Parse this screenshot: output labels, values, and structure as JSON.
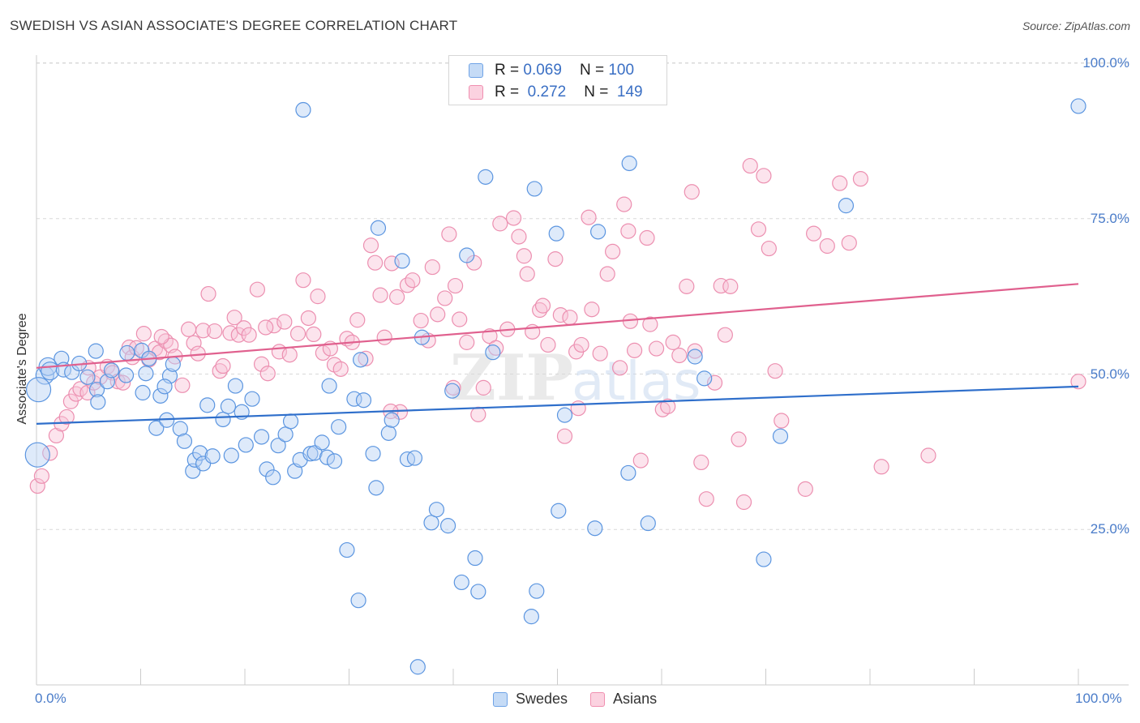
{
  "header": {
    "title": "SWEDISH VS ASIAN ASSOCIATE'S DEGREE CORRELATION CHART",
    "source": "Source: ZipAtlas.com"
  },
  "watermark": "ZIPatlas",
  "legend_top": {
    "rows": [
      {
        "r_label": "R =",
        "r_value": "0.069",
        "n_label": "N =",
        "n_value": "100",
        "color": "#6fa3e6"
      },
      {
        "r_label": "R =",
        "r_value": "0.272",
        "n_label": "N =",
        "n_value": "149",
        "color": "#f08fb0"
      }
    ]
  },
  "legend_bottom": {
    "items": [
      {
        "label": "Swedes",
        "color": "#6fa3e6"
      },
      {
        "label": "Asians",
        "color": "#f08fb0"
      }
    ]
  },
  "chart_data": {
    "type": "scatter",
    "title": "SWEDISH VS ASIAN ASSOCIATE'S DEGREE CORRELATION CHART",
    "xlabel": "",
    "ylabel": "Associate's Degree",
    "xlim": [
      0,
      100
    ],
    "ylim": [
      0,
      100
    ],
    "x_tick_labels": [
      "0.0%",
      "100.0%"
    ],
    "y_ticks": [
      25,
      50,
      75,
      100
    ],
    "y_tick_labels": [
      "25.0%",
      "50.0%",
      "75.0%",
      "100.0%"
    ],
    "grid": "horizontal dashed",
    "legend_position": "top-center",
    "series": [
      {
        "name": "Swedes",
        "color": "#6fa3e6",
        "line_color": "#2f6fcb",
        "trend": {
          "x": [
            0,
            100
          ],
          "y": [
            42.0,
            48.0
          ]
        },
        "points": [
          [
            0.8,
            49.8
          ],
          [
            1.1,
            51.2
          ],
          [
            1.3,
            50.5
          ],
          [
            2.4,
            52.5
          ],
          [
            2.6,
            50.7
          ],
          [
            3.4,
            50.3
          ],
          [
            4.1,
            51.7
          ],
          [
            4.9,
            49.5
          ],
          [
            5.7,
            53.7
          ],
          [
            5.8,
            47.5
          ],
          [
            6.8,
            48.8
          ],
          [
            7.2,
            50.6
          ],
          [
            8.6,
            49.8
          ],
          [
            8.7,
            53.4
          ],
          [
            10.1,
            53.8
          ],
          [
            10.5,
            50.1
          ],
          [
            10.8,
            52.5
          ],
          [
            11.5,
            41.3
          ],
          [
            11.9,
            46.5
          ],
          [
            12.5,
            42.6
          ],
          [
            12.8,
            49.7
          ],
          [
            13.1,
            51.6
          ],
          [
            13.8,
            41.2
          ],
          [
            14.2,
            39.2
          ],
          [
            15.0,
            34.4
          ],
          [
            15.2,
            36.2
          ],
          [
            15.7,
            37.3
          ],
          [
            16.0,
            35.6
          ],
          [
            16.9,
            36.8
          ],
          [
            17.9,
            42.7
          ],
          [
            18.4,
            44.8
          ],
          [
            18.7,
            36.9
          ],
          [
            19.1,
            48.1
          ],
          [
            19.7,
            43.9
          ],
          [
            20.1,
            38.6
          ],
          [
            20.7,
            46.0
          ],
          [
            21.6,
            39.9
          ],
          [
            22.1,
            34.7
          ],
          [
            22.7,
            33.4
          ],
          [
            23.2,
            38.5
          ],
          [
            23.9,
            40.3
          ],
          [
            24.4,
            42.4
          ],
          [
            24.8,
            34.4
          ],
          [
            25.3,
            36.2
          ],
          [
            25.6,
            92.5
          ],
          [
            26.3,
            37.2
          ],
          [
            26.7,
            37.3
          ],
          [
            27.4,
            39.0
          ],
          [
            27.9,
            36.6
          ],
          [
            28.1,
            48.1
          ],
          [
            28.6,
            36.0
          ],
          [
            29.0,
            41.5
          ],
          [
            29.8,
            21.7
          ],
          [
            30.5,
            46.0
          ],
          [
            30.9,
            13.6
          ],
          [
            31.1,
            52.3
          ],
          [
            31.4,
            45.8
          ],
          [
            32.3,
            37.2
          ],
          [
            32.6,
            31.7
          ],
          [
            32.8,
            73.5
          ],
          [
            33.8,
            40.5
          ],
          [
            34.1,
            42.6
          ],
          [
            35.1,
            68.2
          ],
          [
            35.6,
            36.3
          ],
          [
            36.3,
            36.5
          ],
          [
            36.6,
            2.9
          ],
          [
            37.0,
            55.9
          ],
          [
            37.9,
            26.1
          ],
          [
            38.4,
            28.2
          ],
          [
            39.5,
            25.6
          ],
          [
            39.9,
            47.3
          ],
          [
            40.8,
            16.5
          ],
          [
            41.3,
            69.1
          ],
          [
            42.1,
            20.4
          ],
          [
            42.4,
            15.0
          ],
          [
            43.1,
            81.7
          ],
          [
            43.8,
            53.5
          ],
          [
            47.5,
            11.0
          ],
          [
            47.8,
            79.8
          ],
          [
            48.0,
            15.1
          ],
          [
            49.9,
            72.6
          ],
          [
            50.1,
            28.0
          ],
          [
            50.7,
            43.4
          ],
          [
            53.6,
            25.2
          ],
          [
            53.9,
            72.9
          ],
          [
            56.8,
            34.1
          ],
          [
            56.9,
            83.9
          ],
          [
            58.7,
            26.0
          ],
          [
            63.2,
            52.8
          ],
          [
            64.1,
            49.3
          ],
          [
            69.8,
            20.2
          ],
          [
            71.4,
            40.0
          ],
          [
            77.7,
            77.1
          ],
          [
            100.0,
            93.1
          ],
          [
            0.2,
            47.5
          ],
          [
            0.1,
            37.0
          ],
          [
            5.9,
            45.5
          ],
          [
            10.2,
            47.0
          ],
          [
            12.3,
            48.0
          ],
          [
            16.4,
            45.0
          ]
        ],
        "sizes_note": "large markers near x=0"
      },
      {
        "name": "Asians",
        "color": "#f08fb0",
        "line_color": "#e0608e",
        "trend": {
          "x": [
            0,
            100
          ],
          "y": [
            51.0,
            64.5
          ]
        },
        "points": [
          [
            0.1,
            32.0
          ],
          [
            0.5,
            33.6
          ],
          [
            1.3,
            37.3
          ],
          [
            1.9,
            40.1
          ],
          [
            2.4,
            42.0
          ],
          [
            2.9,
            43.1
          ],
          [
            3.3,
            45.6
          ],
          [
            3.8,
            46.8
          ],
          [
            4.2,
            47.6
          ],
          [
            4.9,
            47.0
          ],
          [
            5.5,
            48.6
          ],
          [
            6.1,
            49.5
          ],
          [
            6.8,
            51.2
          ],
          [
            7.3,
            50.2
          ],
          [
            7.8,
            48.8
          ],
          [
            8.3,
            48.6
          ],
          [
            8.9,
            54.3
          ],
          [
            9.2,
            52.7
          ],
          [
            9.6,
            54.2
          ],
          [
            10.3,
            56.5
          ],
          [
            10.8,
            52.3
          ],
          [
            11.4,
            54.1
          ],
          [
            11.8,
            53.5
          ],
          [
            12.4,
            55.3
          ],
          [
            12.9,
            54.6
          ],
          [
            13.3,
            52.8
          ],
          [
            14.0,
            48.2
          ],
          [
            14.6,
            57.2
          ],
          [
            15.1,
            55.0
          ],
          [
            15.5,
            53.3
          ],
          [
            16.0,
            57.0
          ],
          [
            16.5,
            62.9
          ],
          [
            17.1,
            56.9
          ],
          [
            17.6,
            50.5
          ],
          [
            17.9,
            51.3
          ],
          [
            18.6,
            56.6
          ],
          [
            19.0,
            59.1
          ],
          [
            19.4,
            56.3
          ],
          [
            19.9,
            57.4
          ],
          [
            20.4,
            56.3
          ],
          [
            21.2,
            63.6
          ],
          [
            21.6,
            51.6
          ],
          [
            22.2,
            50.1
          ],
          [
            22.8,
            57.8
          ],
          [
            23.3,
            53.6
          ],
          [
            23.8,
            58.4
          ],
          [
            24.3,
            53.1
          ],
          [
            25.1,
            56.5
          ],
          [
            25.6,
            65.1
          ],
          [
            26.1,
            59.0
          ],
          [
            26.6,
            56.4
          ],
          [
            27.0,
            62.5
          ],
          [
            27.5,
            53.4
          ],
          [
            28.2,
            54.1
          ],
          [
            28.6,
            51.5
          ],
          [
            29.2,
            50.8
          ],
          [
            29.8,
            55.7
          ],
          [
            30.3,
            55.1
          ],
          [
            30.8,
            58.7
          ],
          [
            31.6,
            52.5
          ],
          [
            32.1,
            70.7
          ],
          [
            32.5,
            67.9
          ],
          [
            33.0,
            62.7
          ],
          [
            33.4,
            55.9
          ],
          [
            34.1,
            67.8
          ],
          [
            34.6,
            62.4
          ],
          [
            34.9,
            43.9
          ],
          [
            35.6,
            64.3
          ],
          [
            36.1,
            65.1
          ],
          [
            36.9,
            58.6
          ],
          [
            37.6,
            55.4
          ],
          [
            38.0,
            67.2
          ],
          [
            38.5,
            59.6
          ],
          [
            39.2,
            62.2
          ],
          [
            39.6,
            72.5
          ],
          [
            40.2,
            64.2
          ],
          [
            40.6,
            58.8
          ],
          [
            41.3,
            55.1
          ],
          [
            42.0,
            67.9
          ],
          [
            42.4,
            43.5
          ],
          [
            42.9,
            47.8
          ],
          [
            43.5,
            56.1
          ],
          [
            44.1,
            54.2
          ],
          [
            44.5,
            74.2
          ],
          [
            45.2,
            57.2
          ],
          [
            45.8,
            75.1
          ],
          [
            46.3,
            72.1
          ],
          [
            46.8,
            69.0
          ],
          [
            47.1,
            66.1
          ],
          [
            47.6,
            56.8
          ],
          [
            48.3,
            60.3
          ],
          [
            48.6,
            61.0
          ],
          [
            49.1,
            54.7
          ],
          [
            49.8,
            68.5
          ],
          [
            50.3,
            59.5
          ],
          [
            50.7,
            40.0
          ],
          [
            51.2,
            59.1
          ],
          [
            51.8,
            53.6
          ],
          [
            52.3,
            54.7
          ],
          [
            53.0,
            75.2
          ],
          [
            53.3,
            60.4
          ],
          [
            54.1,
            53.3
          ],
          [
            54.8,
            66.1
          ],
          [
            55.3,
            69.7
          ],
          [
            56.0,
            51.0
          ],
          [
            56.4,
            77.3
          ],
          [
            56.8,
            73.0
          ],
          [
            57.4,
            53.8
          ],
          [
            58.0,
            36.1
          ],
          [
            58.6,
            71.9
          ],
          [
            58.9,
            58.0
          ],
          [
            59.5,
            54.1
          ],
          [
            60.1,
            44.3
          ],
          [
            60.6,
            44.8
          ],
          [
            61.1,
            55.1
          ],
          [
            61.7,
            53.0
          ],
          [
            62.4,
            64.1
          ],
          [
            62.9,
            79.3
          ],
          [
            63.2,
            53.7
          ],
          [
            63.8,
            35.8
          ],
          [
            64.3,
            29.9
          ],
          [
            65.1,
            48.6
          ],
          [
            65.7,
            64.2
          ],
          [
            66.1,
            56.3
          ],
          [
            66.6,
            64.1
          ],
          [
            67.4,
            39.5
          ],
          [
            67.9,
            29.4
          ],
          [
            68.5,
            83.5
          ],
          [
            69.3,
            73.3
          ],
          [
            69.8,
            81.9
          ],
          [
            70.3,
            70.2
          ],
          [
            70.9,
            50.5
          ],
          [
            71.5,
            42.5
          ],
          [
            73.8,
            31.5
          ],
          [
            74.6,
            72.6
          ],
          [
            75.9,
            70.6
          ],
          [
            77.1,
            80.7
          ],
          [
            78.0,
            71.1
          ],
          [
            79.1,
            81.4
          ],
          [
            81.1,
            35.1
          ],
          [
            85.6,
            36.9
          ],
          [
            100.0,
            48.8
          ],
          [
            5.0,
            51.0
          ],
          [
            12.0,
            56.0
          ],
          [
            22.0,
            57.5
          ],
          [
            34.0,
            44.0
          ],
          [
            52.0,
            44.5
          ],
          [
            57.0,
            58.5
          ],
          [
            40.0,
            47.8
          ]
        ]
      }
    ]
  }
}
